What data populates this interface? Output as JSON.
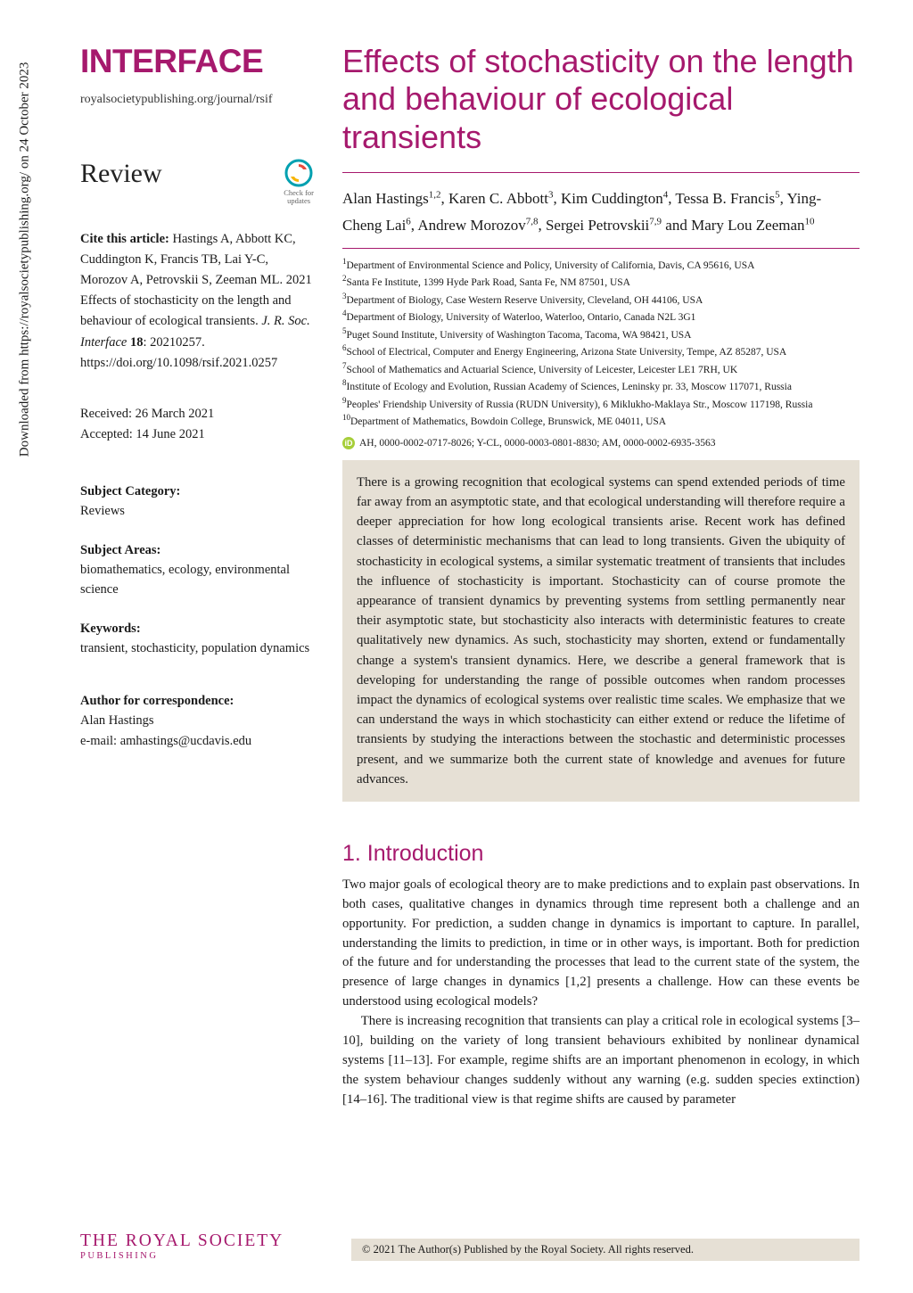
{
  "download_note": "Downloaded from https://royalsocietypublishing.org/ on 24 October 2023",
  "journal": {
    "name": "INTERFACE",
    "url": "royalsocietypublishing.org/journal/rsif"
  },
  "article_type": "Review",
  "check_updates": "Check for\nupdates",
  "citation": {
    "lead": "Cite this article:",
    "text": " Hastings A, Abbott KC, Cuddington K, Francis TB, Lai Y-C, Morozov A, Petrovskii S, Zeeman ML. 2021 Effects of stochasticity on the length and behaviour of ecological transients. ",
    "journal_abbrev": "J. R. Soc. Interface",
    "volume": " 18",
    "pages": ": 20210257.",
    "doi": "https://doi.org/10.1098/rsif.2021.0257"
  },
  "dates": {
    "received": "Received: 26 March 2021",
    "accepted": "Accepted: 14 June 2021"
  },
  "meta": {
    "category_label": "Subject Category:",
    "category": "Reviews",
    "areas_label": "Subject Areas:",
    "areas": "biomathematics, ecology, environmental science",
    "keywords_label": "Keywords:",
    "keywords": "transient, stochasticity, population dynamics",
    "corr_label": "Author for correspondence:",
    "corr_name": "Alan Hastings",
    "corr_email": "e-mail: amhastings@ucdavis.edu"
  },
  "title": "Effects of stochasticity on the length and behaviour of ecological transients",
  "authors_html": "Alan Hastings<sup>1,2</sup>, Karen C. Abbott<sup>3</sup>, Kim Cuddington<sup>4</sup>, Tessa B. Francis<sup>5</sup>, Ying-Cheng Lai<sup>6</sup>, Andrew Morozov<sup>7,8</sup>, Sergei Petrovskii<sup>7,9</sup> and Mary Lou Zeeman<sup>10</sup>",
  "affiliations": [
    "Department of Environmental Science and Policy, University of California, Davis, CA 95616, USA",
    "Santa Fe Institute, 1399 Hyde Park Road, Santa Fe, NM 87501, USA",
    "Department of Biology, Case Western Reserve University, Cleveland, OH 44106, USA",
    "Department of Biology, University of Waterloo, Waterloo, Ontario, Canada N2L 3G1",
    "Puget Sound Institute, University of Washington Tacoma, Tacoma, WA 98421, USA",
    "School of Electrical, Computer and Energy Engineering, Arizona State University, Tempe, AZ 85287, USA",
    "School of Mathematics and Actuarial Science, University of Leicester, Leicester LE1 7RH, UK",
    "Institute of Ecology and Evolution, Russian Academy of Sciences, Leninsky pr. 33, Moscow 117071, Russia",
    "Peoples' Friendship University of Russia (RUDN University), 6 Miklukho-Maklaya Str., Moscow 117198, Russia",
    "Department of Mathematics, Bowdoin College, Brunswick, ME 04011, USA"
  ],
  "orcid_text": "AH, 0000-0002-0717-8026; Y-CL, 0000-0003-0801-8830; AM, 0000-0002-6935-3563",
  "abstract": "There is a growing recognition that ecological systems can spend extended periods of time far away from an asymptotic state, and that ecological understanding will therefore require a deeper appreciation for how long ecological transients arise. Recent work has defined classes of deterministic mechanisms that can lead to long transients. Given the ubiquity of stochasticity in ecological systems, a similar systematic treatment of transients that includes the influence of stochasticity is important. Stochasticity can of course promote the appearance of transient dynamics by preventing systems from settling permanently near their asymptotic state, but stochasticity also interacts with deterministic features to create qualitatively new dynamics. As such, stochasticity may shorten, extend or fundamentally change a system's transient dynamics. Here, we describe a general framework that is developing for understanding the range of possible outcomes when random processes impact the dynamics of ecological systems over realistic time scales. We emphasize that we can understand the ways in which stochasticity can either extend or reduce the lifetime of transients by studying the interactions between the stochastic and deterministic processes present, and we summarize both the current state of knowledge and avenues for future advances.",
  "section1_heading": "1. Introduction",
  "section1_para1": "Two major goals of ecological theory are to make predictions and to explain past observations. In both cases, qualitative changes in dynamics through time represent both a challenge and an opportunity. For prediction, a sudden change in dynamics is important to capture. In parallel, understanding the limits to prediction, in time or in other ways, is important. Both for prediction of the future and for understanding the processes that lead to the current state of the system, the presence of large changes in dynamics [1,2] presents a challenge. How can these events be understood using ecological models?",
  "section1_para2": "There is increasing recognition that transients can play a critical role in ecological systems [3–10], building on the variety of long transient behaviours exhibited by nonlinear dynamical systems [11–13]. For example, regime shifts are an important phenomenon in ecology, in which the system behaviour changes suddenly without any warning (e.g. sudden species extinction) [14–16]. The traditional view is that regime shifts are caused by parameter",
  "publisher": {
    "line1": "THE ROYAL SOCIETY",
    "line2": "PUBLISHING"
  },
  "copyright": "© 2021 The Author(s) Published by the Royal Society. All rights reserved.",
  "colors": {
    "brand": "#a6196d",
    "abstract_bg": "#e6e0d5",
    "orcid": "#a6ce39"
  }
}
